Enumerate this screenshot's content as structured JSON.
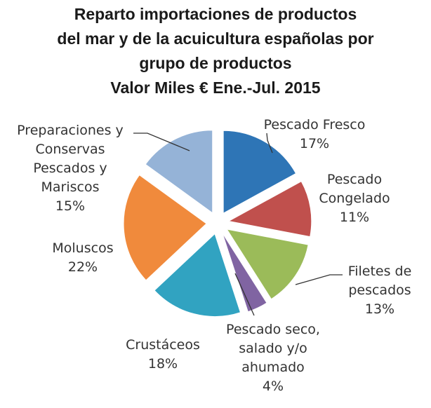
{
  "chart_data": {
    "type": "pie",
    "title": [
      "Reparto importaciones de productos",
      "del mar y de la acuicultura españolas por",
      "grupo de productos",
      "Valor Miles € Ene.-Jul. 2015"
    ],
    "series": [
      {
        "value": 17,
        "percent_label": "17%",
        "label_lines": [
          "Pescado Fresco"
        ],
        "color": "#2e75b6"
      },
      {
        "value": 11,
        "percent_label": "11%",
        "label_lines": [
          "Pescado",
          "Congelado"
        ],
        "color": "#c0504d"
      },
      {
        "value": 13,
        "percent_label": "13%",
        "label_lines": [
          "Filetes de",
          "pescados"
        ],
        "color": "#9bbb59"
      },
      {
        "value": 4,
        "percent_label": "4%",
        "label_lines": [
          "Pescado seco,",
          "salado y/o",
          "ahumado"
        ],
        "color": "#8064a2"
      },
      {
        "value": 18,
        "percent_label": "18%",
        "label_lines": [
          "Crustáceos"
        ],
        "color": "#31a3c1"
      },
      {
        "value": 22,
        "percent_label": "22%",
        "label_lines": [
          "Moluscos"
        ],
        "color": "#f08a3c"
      },
      {
        "value": 15,
        "percent_label": "15%",
        "label_lines": [
          "Preparaciones y",
          "Conservas",
          "Pescados y",
          "Mariscos"
        ],
        "color": "#95b3d7"
      }
    ],
    "legend": "none"
  }
}
